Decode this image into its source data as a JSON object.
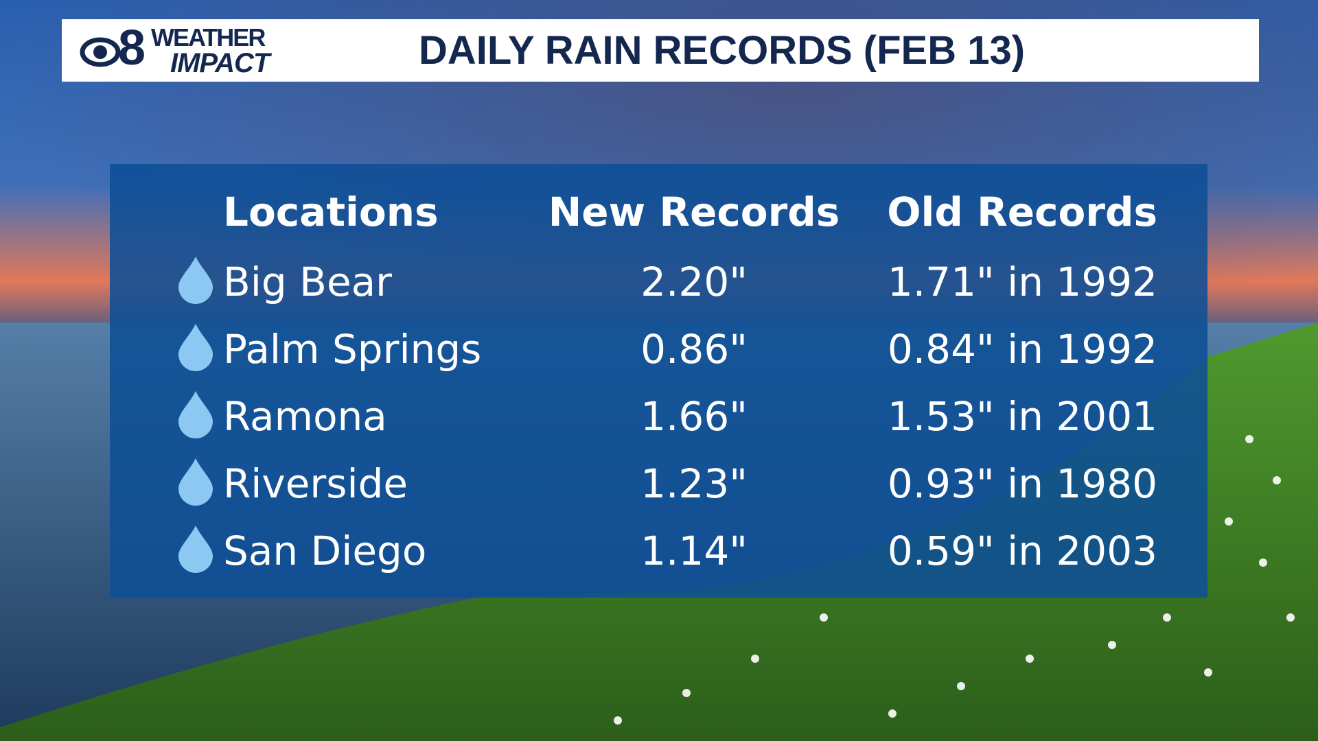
{
  "header": {
    "logo_number": "8",
    "logo_top": "WEATHER",
    "logo_bottom": "IMPACT",
    "title": "DAILY RAIN RECORDS (FEB 13)"
  },
  "table": {
    "columns": [
      "Locations",
      "New Records",
      "Old Records"
    ],
    "rows": [
      [
        "Big Bear",
        "2.20\"",
        "1.71\" in 1992"
      ],
      [
        "Palm Springs",
        "0.86\"",
        "0.84\" in 1992"
      ],
      [
        "Ramona",
        "1.66\"",
        "1.53\" in 2001"
      ],
      [
        "Riverside",
        "1.23\"",
        "0.93\" in 1980"
      ],
      [
        "San Diego",
        "1.14\"",
        "0.59\" in 2003"
      ]
    ]
  }
}
